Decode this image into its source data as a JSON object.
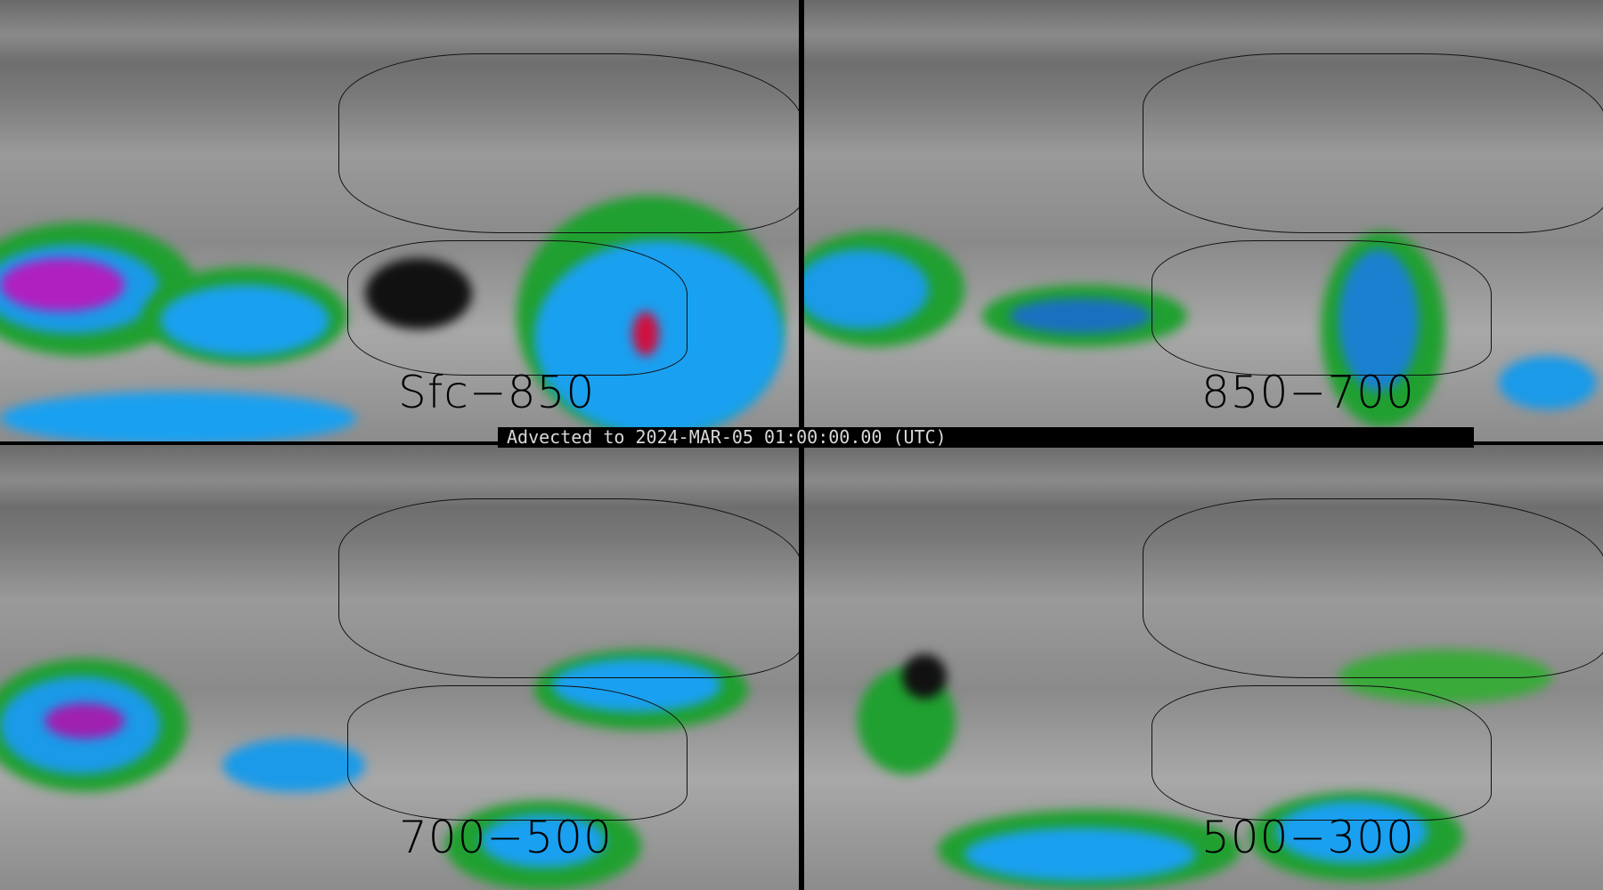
{
  "banner": {
    "text": "Advected to 2024-MAR-05 01:00:00.00 (UTC)"
  },
  "panels": [
    {
      "label": "Sfc−850"
    },
    {
      "label": "850−700"
    },
    {
      "label": "700−500"
    },
    {
      "label": "500−300"
    }
  ],
  "colors": {
    "low": "#2a9a2a",
    "mid": "#1aa0f0",
    "high": "#c020c0",
    "peak": "#e01030",
    "background": "#808080"
  }
}
